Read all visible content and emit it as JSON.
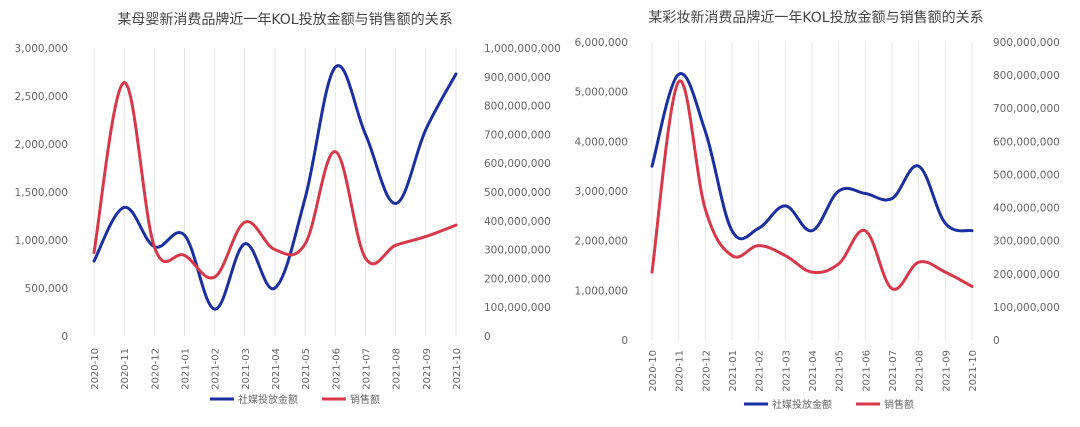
{
  "colors": {
    "social_media_spend": "#1a2fa0",
    "sales": "#d8394a",
    "grid": "#e6e6e6",
    "axis_text": "#666666",
    "title_text": "#444444"
  },
  "chart_data": [
    {
      "type": "line",
      "title": "某母婴新消费品牌近一年KOL投放金额与销售额的关系",
      "categories": [
        "2020-10",
        "2020-11",
        "2020-12",
        "2021-01",
        "2021-02",
        "2021-03",
        "2021-04",
        "2021-05",
        "2021-06",
        "2021-07",
        "2021-08",
        "2021-09",
        "2021-10"
      ],
      "y_left": {
        "ylim": [
          0,
          3000000
        ],
        "ticks": [
          "0",
          "500,000",
          "1,000,000",
          "1,500,000",
          "2,000,000",
          "2,500,000",
          "3,000,000"
        ]
      },
      "y_right": {
        "ylim": [
          0,
          1000000000
        ],
        "ticks": [
          "0",
          "100,000,000",
          "200,000,000",
          "300,000,000",
          "400,000,000",
          "500,000,000",
          "600,000,000",
          "700,000,000",
          "800,000,000",
          "900,000,000",
          "1,000,000,000"
        ]
      },
      "series": [
        {
          "name": "社媒投放金额",
          "axis": "left",
          "color_key": "social_media_spend",
          "values": [
            780000,
            1340000,
            930000,
            1050000,
            280000,
            960000,
            500000,
            1440000,
            2800000,
            2100000,
            1380000,
            2150000,
            2730000
          ]
        },
        {
          "name": "销售额",
          "axis": "right",
          "color_key": "sales",
          "values": [
            290000000,
            880000000,
            310000000,
            280000000,
            205000000,
            395000000,
            300000000,
            320000000,
            640000000,
            270000000,
            315000000,
            345000000,
            385000000
          ]
        }
      ],
      "legend": "bottom",
      "grid": "vertical"
    },
    {
      "type": "line",
      "title": "某彩妆新消费品牌近一年KOL投放金额与销售额的关系",
      "categories": [
        "2020-10",
        "2020-11",
        "2020-12",
        "2021-01",
        "2021-02",
        "2021-03",
        "2021-04",
        "2021-05",
        "2021-06",
        "2021-07",
        "2021-08",
        "2021-09",
        "2021-10"
      ],
      "y_left": {
        "ylim": [
          0,
          6000000
        ],
        "ticks": [
          "0",
          "1,000,000",
          "2,000,000",
          "3,000,000",
          "4,000,000",
          "5,000,000",
          "6,000,000"
        ]
      },
      "y_right": {
        "ylim": [
          0,
          900000000
        ],
        "ticks": [
          "0",
          "100,000,000",
          "200,000,000",
          "300,000,000",
          "400,000,000",
          "500,000,000",
          "600,000,000",
          "700,000,000",
          "800,000,000",
          "900,000,000"
        ]
      },
      "series": [
        {
          "name": "社媒投放金额",
          "axis": "left",
          "color_key": "social_media_spend",
          "values": [
            3500000,
            5350000,
            4200000,
            2200000,
            2250000,
            2700000,
            2200000,
            3000000,
            2950000,
            2850000,
            3500000,
            2350000,
            2200000
          ]
        },
        {
          "name": "销售额",
          "axis": "right",
          "color_key": "sales",
          "values": [
            205000000,
            780000000,
            395000000,
            255000000,
            285000000,
            255000000,
            205000000,
            230000000,
            330000000,
            155000000,
            235000000,
            205000000,
            162000000
          ]
        }
      ],
      "legend": "bottom",
      "grid": "vertical"
    }
  ]
}
